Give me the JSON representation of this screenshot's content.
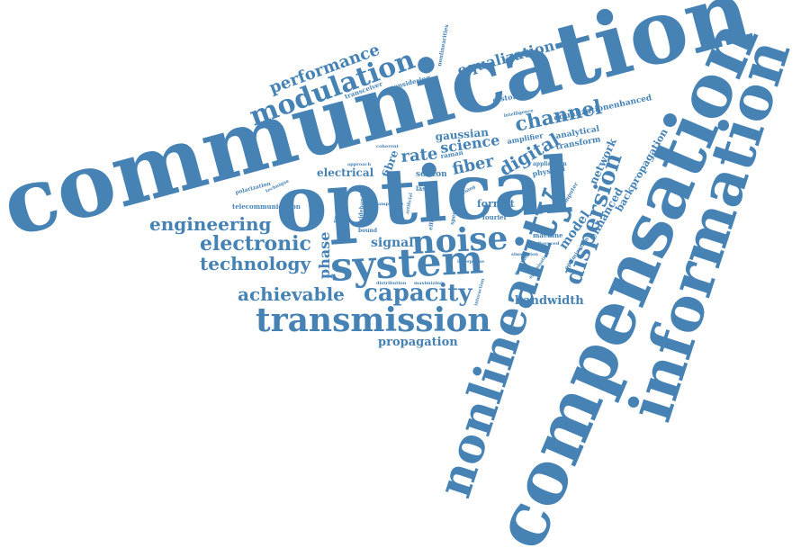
{
  "colors": {
    "word": "#4682b4",
    "background": "#ffffff"
  },
  "cloud": {
    "words": [
      "communication",
      "compensation",
      "optical",
      "information",
      "nonlinearity",
      "system",
      "transmission",
      "noise",
      "modulation",
      "dispersion",
      "capacity",
      "achievable",
      "electronic",
      "engineering",
      "technology",
      "performance",
      "channel",
      "fiber",
      "equalization",
      "digital",
      "science",
      "bandwidth",
      "propagation",
      "phase",
      "signal",
      "network",
      "model",
      "rate",
      "electrical",
      "format",
      "gaussian",
      "fibre",
      "backpropagation",
      "enhanced",
      "equalizationenhanced",
      "analytical",
      "transform",
      "raman",
      "soliton",
      "laser",
      "amplifier",
      "physical",
      "distortion",
      "application",
      "computer",
      "machine",
      "optimization",
      "telecommunication",
      "polarization",
      "transceiver",
      "considering",
      "nonlinearities",
      "intelligence",
      "spectral",
      "fourier",
      "effect",
      "wideband",
      "processing",
      "technique",
      "coherent",
      "approach",
      "bound",
      "amplitude",
      "artificial",
      "learning",
      "interaction",
      "distribution",
      "maximizing",
      "simulation",
      "modeling",
      "optimisation",
      "laserphase",
      "influenced"
    ]
  }
}
